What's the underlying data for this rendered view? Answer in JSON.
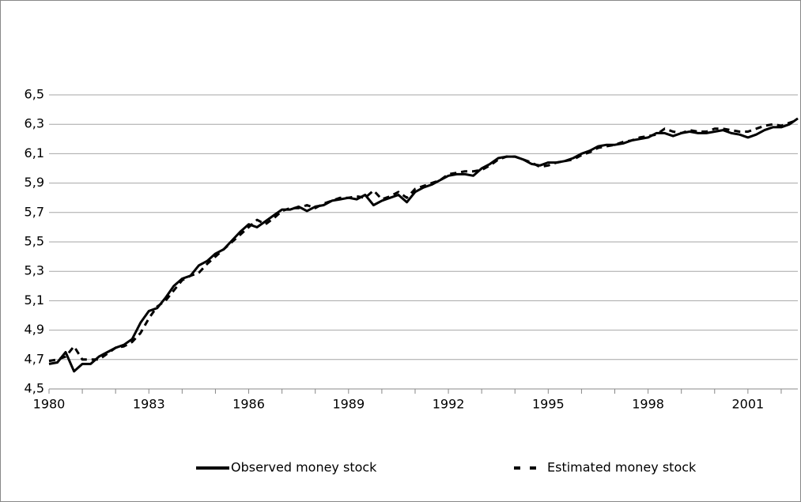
{
  "chart_data": {
    "type": "line",
    "x": [
      1980,
      1980.25,
      1980.5,
      1980.75,
      1981,
      1981.25,
      1981.5,
      1981.75,
      1982,
      1982.25,
      1982.5,
      1982.75,
      1983,
      1983.25,
      1983.5,
      1983.75,
      1984,
      1984.25,
      1984.5,
      1984.75,
      1985,
      1985.25,
      1985.5,
      1985.75,
      1986,
      1986.25,
      1986.5,
      1986.75,
      1987,
      1987.25,
      1987.5,
      1987.75,
      1988,
      1988.25,
      1988.5,
      1988.75,
      1989,
      1989.25,
      1989.5,
      1989.75,
      1990,
      1990.25,
      1990.5,
      1990.75,
      1991,
      1991.25,
      1991.5,
      1991.75,
      1992,
      1992.25,
      1992.5,
      1992.75,
      1993,
      1993.25,
      1993.5,
      1993.75,
      1994,
      1994.25,
      1994.5,
      1994.75,
      1995,
      1995.25,
      1995.5,
      1995.75,
      1996,
      1996.25,
      1996.5,
      1996.75,
      1997,
      1997.25,
      1997.5,
      1997.75,
      1998,
      1998.25,
      1998.5,
      1998.75,
      1999,
      1999.25,
      1999.5,
      1999.75,
      2000,
      2000.25,
      2000.5,
      2000.75,
      2001,
      2001.25,
      2001.5,
      2001.75,
      2002,
      2002.25,
      2002.5
    ],
    "series": [
      {
        "name": "Observed money stock",
        "color": "#000000",
        "dash": false,
        "values": [
          4.67,
          4.68,
          4.75,
          4.62,
          4.67,
          4.67,
          4.72,
          4.75,
          4.78,
          4.8,
          4.84,
          4.95,
          5.03,
          5.05,
          5.12,
          5.2,
          5.25,
          5.27,
          5.34,
          5.37,
          5.42,
          5.45,
          5.51,
          5.57,
          5.62,
          5.6,
          5.64,
          5.68,
          5.72,
          5.72,
          5.74,
          5.71,
          5.74,
          5.75,
          5.78,
          5.79,
          5.8,
          5.79,
          5.82,
          5.75,
          5.78,
          5.8,
          5.82,
          5.77,
          5.84,
          5.87,
          5.89,
          5.92,
          5.95,
          5.96,
          5.96,
          5.95,
          6.0,
          6.03,
          6.07,
          6.08,
          6.08,
          6.06,
          6.03,
          6.02,
          6.04,
          6.04,
          6.05,
          6.07,
          6.1,
          6.12,
          6.15,
          6.16,
          6.16,
          6.17,
          6.19,
          6.2,
          6.21,
          6.24,
          6.24,
          6.22,
          6.24,
          6.25,
          6.24,
          6.24,
          6.25,
          6.26,
          6.24,
          6.23,
          6.21,
          6.23,
          6.26,
          6.28,
          6.28,
          6.3,
          6.34
        ]
      },
      {
        "name": "Estimated money stock",
        "color": "#000000",
        "dash": true,
        "values": [
          4.69,
          4.7,
          4.72,
          4.79,
          4.7,
          4.7,
          4.7,
          4.74,
          4.78,
          4.79,
          4.82,
          4.88,
          4.98,
          5.06,
          5.1,
          5.17,
          5.24,
          5.27,
          5.29,
          5.35,
          5.4,
          5.45,
          5.5,
          5.55,
          5.6,
          5.65,
          5.62,
          5.66,
          5.71,
          5.73,
          5.73,
          5.75,
          5.73,
          5.76,
          5.78,
          5.8,
          5.8,
          5.81,
          5.8,
          5.85,
          5.79,
          5.81,
          5.84,
          5.8,
          5.86,
          5.88,
          5.9,
          5.92,
          5.96,
          5.97,
          5.98,
          5.98,
          5.99,
          6.02,
          6.06,
          6.08,
          6.08,
          6.06,
          6.04,
          6.01,
          6.02,
          6.04,
          6.05,
          6.06,
          6.09,
          6.11,
          6.14,
          6.15,
          6.16,
          6.18,
          6.19,
          6.21,
          6.22,
          6.23,
          6.27,
          6.25,
          6.24,
          6.26,
          6.25,
          6.25,
          6.27,
          6.27,
          6.26,
          6.25,
          6.25,
          6.27,
          6.29,
          6.3,
          6.29,
          6.31,
          6.33
        ]
      }
    ],
    "xlim": [
      1980,
      2002.5
    ],
    "xticks": [
      1980,
      1983,
      1986,
      1989,
      1992,
      1995,
      1998,
      2001
    ],
    "xminorticks": [
      1980,
      1981,
      1982,
      1983,
      1984,
      1985,
      1986,
      1987,
      1988,
      1989,
      1990,
      1991,
      1992,
      1993,
      1994,
      1995,
      1996,
      1997,
      1998,
      1999,
      2000,
      2001,
      2002
    ],
    "ylim": [
      4.5,
      6.5
    ],
    "yticks": [
      {
        "value": 4.5,
        "label": "4,5"
      },
      {
        "value": 4.7,
        "label": "4,7"
      },
      {
        "value": 4.9,
        "label": "4,9"
      },
      {
        "value": 5.1,
        "label": "5,1"
      },
      {
        "value": 5.3,
        "label": "5,3"
      },
      {
        "value": 5.5,
        "label": "5,5"
      },
      {
        "value": 5.7,
        "label": "5,7"
      },
      {
        "value": 5.9,
        "label": "5,9"
      },
      {
        "value": 6.1,
        "label": "6,1"
      },
      {
        "value": 6.3,
        "label": "6,3"
      },
      {
        "value": 6.5,
        "label": "6,5"
      }
    ],
    "grid": true,
    "legend": "bottom"
  }
}
